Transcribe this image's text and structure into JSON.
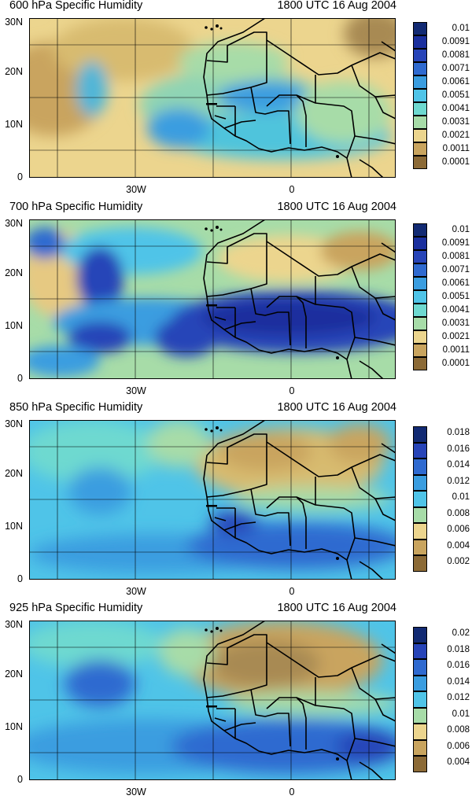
{
  "panels": [
    {
      "title": "600 hPa Specific Humidity",
      "time": "1800 UTC 16 Aug 2004",
      "lat_labels": [
        "30N",
        "20N",
        "10N",
        "0"
      ],
      "lon_labels": [
        "30W",
        "0"
      ],
      "legend_labels": [
        "0.01",
        "0.0091",
        "0.0081",
        "0.0071",
        "0.0061",
        "0.0051",
        "0.0041",
        "0.0031",
        "0.0021",
        "0.0011",
        "0.0001"
      ]
    },
    {
      "title": "700 hPa Specific Humidity",
      "time": "1800 UTC 16 Aug 2004",
      "lat_labels": [
        "30N",
        "20N",
        "10N",
        "0"
      ],
      "lon_labels": [
        "30W",
        "0"
      ],
      "legend_labels": [
        "0.01",
        "0.0091",
        "0.0081",
        "0.0071",
        "0.0061",
        "0.0051",
        "0.0041",
        "0.0031",
        "0.0021",
        "0.0011",
        "0.0001"
      ]
    },
    {
      "title": "850 hPa Specific Humidity",
      "time": "1800 UTC 16 Aug 2004",
      "lat_labels": [
        "30N",
        "20N",
        "10N",
        "0"
      ],
      "lon_labels": [
        "30W",
        "0"
      ],
      "legend_labels": [
        "0.018",
        "0.016",
        "0.014",
        "0.012",
        "0.01",
        "0.008",
        "0.006",
        "0.004",
        "0.002"
      ]
    },
    {
      "title": "925 hPa Specific Humidity",
      "time": "1800 UTC 16 Aug 2004",
      "lat_labels": [
        "30N",
        "20N",
        "10N",
        "0"
      ],
      "lon_labels": [
        "30W",
        "0"
      ],
      "legend_labels": [
        "0.02",
        "0.018",
        "0.016",
        "0.014",
        "0.012",
        "0.01",
        "0.008",
        "0.006",
        "0.004"
      ]
    }
  ],
  "colors": {
    "dry_dark": "#8c6a36",
    "dry": "#c9a45e",
    "dry_light": "#ecd58e",
    "neutral": "#a7dca8",
    "moist_light": "#4fd0e0",
    "moist": "#3a9de0",
    "moist_dark": "#2744b8",
    "deep": "#122a73",
    "coast": "#000000"
  }
}
